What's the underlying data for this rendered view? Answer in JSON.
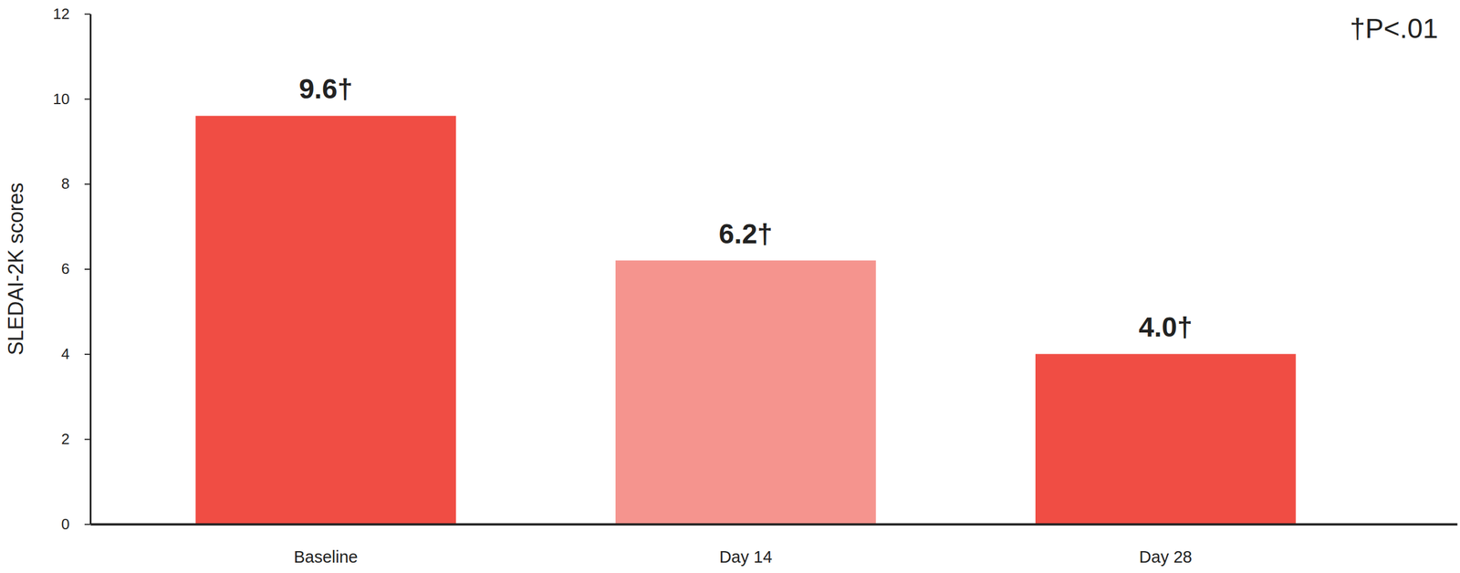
{
  "chart_data": {
    "type": "bar",
    "categories": [
      "Baseline",
      "Day 14",
      "Day 28"
    ],
    "values": [
      9.6,
      6.2,
      4.0
    ],
    "value_labels": [
      "9.6†",
      "6.2†",
      "4.0†"
    ],
    "colors": [
      "#f04d44",
      "#f5948e",
      "#f04d44"
    ],
    "ylabel": "SLEDAI-2K scores",
    "annotation": "†P<.01",
    "ylim": [
      0,
      12
    ],
    "yticks": [
      0,
      2,
      4,
      6,
      8,
      10,
      12
    ],
    "data_labels": true,
    "grid": false
  }
}
